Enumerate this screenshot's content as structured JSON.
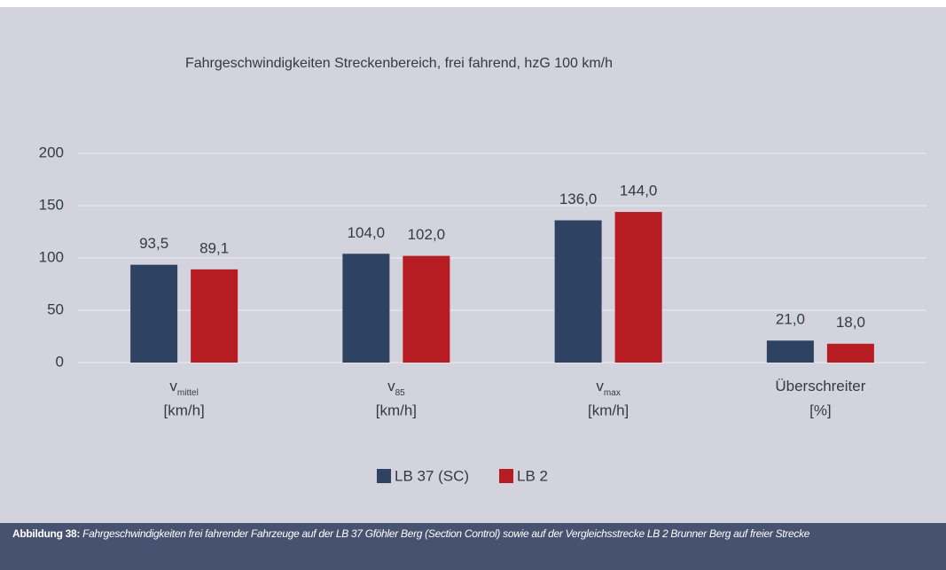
{
  "chart_data": {
    "type": "bar",
    "title": "Fahrgeschwindigkeiten Streckenbereich, frei fahrend, hzG 100 km/h",
    "categories": [
      {
        "label": "v",
        "subscript": "mittel",
        "unit": "[km/h]"
      },
      {
        "label": "v",
        "subscript": "85",
        "unit": "[km/h]"
      },
      {
        "label": "v",
        "subscript": "max",
        "unit": "[km/h]"
      },
      {
        "label": "Überschreiter",
        "unit": "[%]"
      }
    ],
    "series": [
      {
        "name": "LB 37 (SC)",
        "color": "#2e4262",
        "values": [
          93.5,
          104.0,
          136.0,
          21.0
        ],
        "value_labels": [
          "93,5",
          "104,0",
          "136,0",
          "21,0"
        ]
      },
      {
        "name": "LB 2",
        "color": "#b71c23",
        "values": [
          89.1,
          102.0,
          144.0,
          18.0
        ],
        "value_labels": [
          "89,1",
          "102,0",
          "144,0",
          "18,0"
        ]
      }
    ],
    "ylim": [
      0,
      200
    ],
    "yticks": [
      0,
      50,
      100,
      150,
      200
    ],
    "grid": true,
    "legend": "bottom"
  },
  "caption": {
    "label": "Abbildung 38:",
    "text": "Fahrgeschwindigkeiten frei fahrender Fahrzeuge auf der LB 37 Gföhler Berg (Section Control) sowie auf der Vergleichsstrecke LB 2 Brunner Berg auf freier Strecke"
  }
}
